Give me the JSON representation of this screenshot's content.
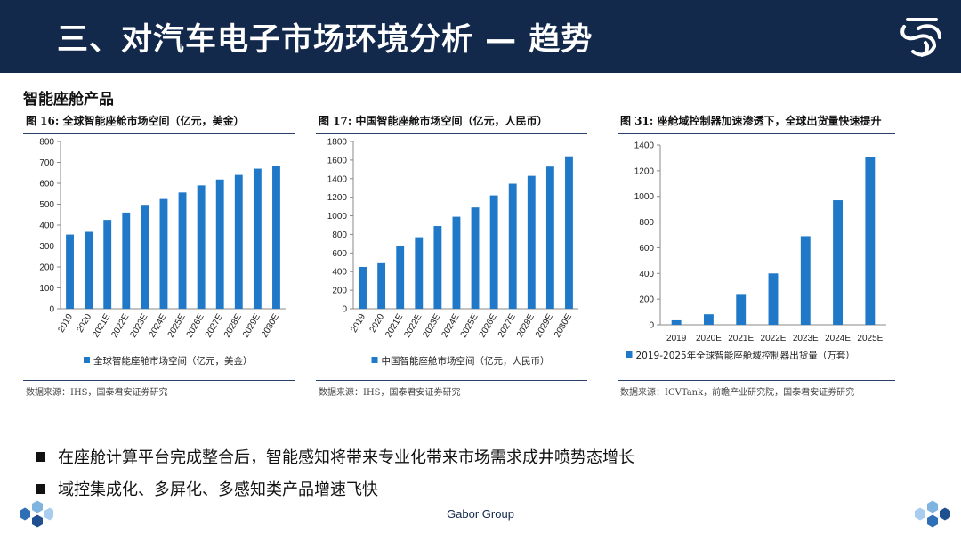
{
  "header": {
    "title": "三、对汽车电子市场环境分析 — 趋势"
  },
  "section": {
    "title": "智能座舱产品"
  },
  "colors": {
    "header_bg": "#13294b",
    "bar": "#1f78c8",
    "accent": "#2a3f6a"
  },
  "icons": {
    "logo": "brand-logo-icon",
    "hex_left": "hexagon-cluster-icon",
    "hex_right": "hexagon-cluster-icon"
  },
  "chart_data": [
    {
      "type": "bar",
      "title": "图 16: 全球智能座舱市场空间（亿元，美金）",
      "categories": [
        "2019",
        "2020",
        "2021E",
        "2022E",
        "2023E",
        "2024E",
        "2025E",
        "2026E",
        "2027E",
        "2028E",
        "2029E",
        "2030E"
      ],
      "series": [
        {
          "name": "全球智能座舱市场空间（亿元，美金）",
          "values": [
            355,
            368,
            425,
            460,
            497,
            525,
            556,
            590,
            618,
            640,
            670,
            682
          ]
        }
      ],
      "ylim": [
        0,
        800
      ],
      "yticks": [
        0,
        100,
        200,
        300,
        400,
        500,
        600,
        700,
        800
      ],
      "source": "数据来源：IHS，国泰君安证券研究",
      "legend": "bottom",
      "grid": false
    },
    {
      "type": "bar",
      "title": "图 17: 中国智能座舱市场空间（亿元，人民币）",
      "categories": [
        "2019",
        "2020",
        "2021E",
        "2022E",
        "2023E",
        "2024E",
        "2025E",
        "2026E",
        "2027E",
        "2028E",
        "2029E",
        "2030E"
      ],
      "series": [
        {
          "name": "中国智能座舱市场空间（亿元，人民币）",
          "values": [
            450,
            490,
            680,
            770,
            890,
            990,
            1090,
            1220,
            1345,
            1430,
            1530,
            1640
          ]
        }
      ],
      "ylim": [
        0,
        1800
      ],
      "yticks": [
        0,
        200,
        400,
        600,
        800,
        1000,
        1200,
        1400,
        1600,
        1800
      ],
      "source": "数据来源：IHS，国泰君安证券研究",
      "legend": "bottom",
      "grid": false
    },
    {
      "type": "bar",
      "title": "图 31: 座舱域控制器加速渗透下，全球出货量快速提升",
      "categories": [
        "2019",
        "2020E",
        "2021E",
        "2022E",
        "2023E",
        "2024E",
        "2025E"
      ],
      "series": [
        {
          "name": "2019-2025年全球智能座舱域控制器出货量（万套）",
          "values": [
            35,
            82,
            240,
            400,
            690,
            970,
            1305
          ]
        }
      ],
      "ylim": [
        0,
        1400
      ],
      "yticks": [
        0,
        200,
        400,
        600,
        800,
        1000,
        1200,
        1400
      ],
      "source": "数据来源：ICVTank，前瞻产业研究院，国泰君安证券研究",
      "legend": "bottom",
      "grid": false
    }
  ],
  "bullets": [
    "在座舱计算平台完成整合后，智能感知将带来专业化带来市场需求成井喷势态增长",
    "域控集成化、多屏化、多感知类产品增速飞快"
  ],
  "footer": {
    "brand": "Gabor Group"
  }
}
